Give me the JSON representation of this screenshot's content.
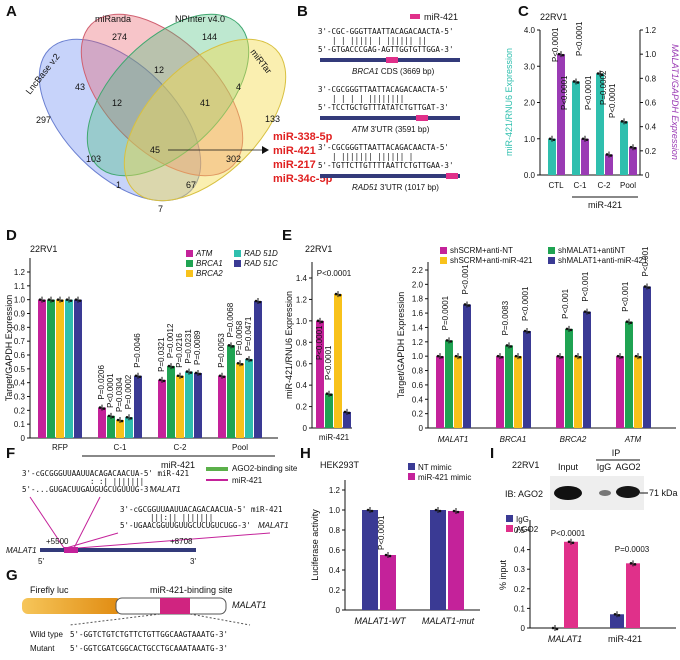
{
  "panel_labels": [
    "A",
    "B",
    "C",
    "D",
    "E",
    "F",
    "G",
    "H",
    "I"
  ],
  "colors": {
    "teal": "#2fbfae",
    "magenta": "#c4229a",
    "purple": "#9a3bb4",
    "yellow": "#f8c21b",
    "green": "#1fa352",
    "navy": "#3a3a94",
    "blue": "#2a4ec0",
    "pink": "#e0308a",
    "red": "#e02020",
    "dark": "#151515"
  },
  "panel_a": {
    "sets": [
      "LncBase v.2",
      "miRanda",
      "NPInter v4.0",
      "miRTar"
    ],
    "counts": [
      "297",
      "274",
      "144",
      "133",
      "43",
      "12",
      "4",
      "12",
      "41",
      "103",
      "45",
      "302",
      "1",
      "67",
      "7"
    ],
    "mirnas": [
      "miR-338-5p",
      "miR-421",
      "miR-217",
      "miR-34c-5p"
    ]
  },
  "panel_b": {
    "legend": "miR-421",
    "blocks": [
      {
        "top": "3'-CGC-GGGTTAATTACAGACAACTA-5'",
        "pairs": "| |   ||||| |    |||||| ||",
        "bottom": "5'-GTGACCCGAG-AGTTGGTGTTGGA-3'",
        "gene": "BRCA1",
        "caption": " CDS (3669 bp)"
      },
      {
        "top": "3'-CGCGGGTTAATTACAGACAACTA-5'",
        "pairs": "|   | |  |   ||||||||",
        "bottom": "5'-TCCTGCTGTTTATATCTGTTGAT-3'",
        "gene": "ATM",
        "caption": " 3'UTR (3591 bp)"
      },
      {
        "top": "3'-CGCGGGTTAATTACAGACAACTA-5'",
        "pairs": "|  |||||||  |||||| |",
        "bottom": "5'-TGTTCTTGTTTTAATTCTGTTGAA-3'",
        "gene": "RAD51",
        "caption": " 3'UTR (1017 bp)"
      }
    ]
  },
  "panel_c": {
    "cell": "22RV1",
    "ylabel_left": "miR-421/RNU6 Expression",
    "ylabel_right": "MALAT1/GAPDH Expression",
    "ticks_left": [
      "0.0",
      "1.0",
      "2.0",
      "3.0",
      "4.0"
    ],
    "ticks_right": [
      "0",
      "0.2",
      "0.4",
      "0.6",
      "0.8",
      "1.0",
      "1.2"
    ],
    "pvals": [
      "P<0.0001",
      "P<0.0001",
      "P<0.0001",
      "P<0.0001",
      "P=0.0002",
      "P<0.0001"
    ],
    "group_label": "miR-421"
  },
  "panel_d": {
    "cell": "22RV1",
    "legend": [
      "ATM",
      "BRCA1",
      "BRCA2",
      "RAD 51D",
      "RAD 51C"
    ],
    "ylabel": "Target/GAPDH Expression",
    "ticks": [
      "0",
      "0.1",
      "0.2",
      "0.3",
      "0.4",
      "0.5",
      "0.6",
      "0.7",
      "0.8",
      "0.9",
      "1.0",
      "1.1",
      "1.2"
    ],
    "pvals": [
      "P=0.0206",
      "P<0.0001",
      "P=0.0304",
      "P=0.0002",
      "P=0.0046",
      "P=0.0321",
      "P=0.0012",
      "P=0.0216",
      "P=0.0231",
      "P=0.0089",
      "P=0.0053",
      "P=0.0068",
      "P=0.0058",
      "P=0.0471"
    ],
    "group_label": "miR-421"
  },
  "panel_e": {
    "cell": "22RV1",
    "legend": [
      "shSCRM+anti-NT",
      "shMALAT1+antiNT",
      "shSCRM+anti-miR-421",
      "shMALAT1+anti-miR-421"
    ],
    "ylabel_left": "miR-421/RNU6 Expression",
    "ylabel_right": "Target/GAPDH Expression",
    "ticks_left": [
      "0",
      "0.2",
      "0.4",
      "0.6",
      "0.8",
      "1.0",
      "1.2",
      "1.4"
    ],
    "ticks_right": [
      "0",
      "0.2",
      "0.4",
      "0.6",
      "0.8",
      "1.0",
      "1.2",
      "1.4",
      "1.6",
      "1.8",
      "2.0",
      "2.2"
    ],
    "pvals_left": [
      "P<0.0001",
      "P<0.0001",
      "P<0.0001"
    ],
    "pvals_right": [
      "P=0.0001",
      "P<0.001",
      "P=0.0083",
      "P<0.0001",
      "P<0.001",
      "P<0.001",
      "P<0.001",
      "P<0.001"
    ]
  },
  "panel_f": {
    "legend": [
      "AGO2-binding site",
      "miR-421"
    ],
    "site1_top": "3'-cGCGGGUUAAUUACAGACAACUA-5' miR-421",
    "site1_pairs": ": :|  |||||||",
    "site1_bottom": "5'-...GUGACUUGAUGUGCUGUUUG-3'",
    "site1_gene": "MALAT1",
    "site2_top": "3'-cGCGGUUAAUUACAGACAACUA-5' miR-421",
    "site2_pairs": "|||:||  |||||||",
    "site2_bottom": "5'-UGAACGGUUGUUGCUCUGUCUGG-3'",
    "site2_gene": "MALAT1",
    "coord1": "+5500",
    "coord2": "+8708",
    "gene": "MALAT1",
    "five": "5'",
    "three": "3'"
  },
  "panel_g": {
    "luc": "Firefly luc",
    "site": "miR-421-binding site",
    "gene": "MALAT1",
    "wt_label": "Wild type",
    "wt_seq": "5'-GGTCTGTCTGTTCTGTTGGCAAGTAAATG-3'",
    "mut_label": "Mutant",
    "mut_seq": "5'-GGTCGATCGGCACTGCCTGCAAATAAATG-3'"
  },
  "panel_h": {
    "cell": "HEK293T",
    "legend": [
      "NT mimic",
      "miR-421 mimic"
    ],
    "ylabel": "Luciferase activity",
    "ticks": [
      "0",
      "0.2",
      "0.4",
      "0.6",
      "0.8",
      "1.0",
      "1.2"
    ],
    "categories": [
      "MALAT1-WT",
      "MALAT1-mut"
    ],
    "pval": "P<0.0001"
  },
  "panel_i": {
    "cell": "22RV1",
    "blot_labels": [
      "Input",
      "IgG",
      "AGO2",
      "IP"
    ],
    "ib": "IB: AGO2",
    "kda": "71 kDa",
    "legend": [
      "IgG",
      "AGO2"
    ],
    "ylabel": "% input",
    "ticks": [
      "0",
      "0.1",
      "0.2",
      "0.3",
      "0.4",
      "0.5"
    ],
    "categories": [
      "MALAT1",
      "miR-421"
    ],
    "pvals": [
      "P<0.0001",
      "P=0.0003"
    ]
  },
  "chart_data": [
    {
      "type": "bar",
      "panel": "C",
      "categories": [
        "CTL",
        "C-1",
        "C-2",
        "Pool"
      ],
      "ylim": [
        0,
        4
      ],
      "y2lim": [
        0,
        1.2
      ],
      "series": [
        {
          "name": "miR-421/RNU6",
          "axis": "left",
          "values": [
            1.0,
            2.58,
            2.8,
            1.48
          ]
        },
        {
          "name": "MALAT1/GAPDH",
          "axis": "right",
          "values": [
            1.0,
            0.3,
            0.17,
            0.23
          ]
        }
      ]
    },
    {
      "type": "bar",
      "panel": "D",
      "categories": [
        "RFP",
        "C-1",
        "C-2",
        "Pool"
      ],
      "ylim": [
        0,
        1.2
      ],
      "series": [
        {
          "name": "ATM",
          "values": [
            1.0,
            0.22,
            0.42,
            0.45
          ]
        },
        {
          "name": "BRCA1",
          "values": [
            1.0,
            0.16,
            0.52,
            0.67
          ]
        },
        {
          "name": "BRCA2",
          "values": [
            1.0,
            0.13,
            0.45,
            0.54
          ]
        },
        {
          "name": "RAD 51D",
          "values": [
            1.0,
            0.15,
            0.48,
            0.57
          ]
        },
        {
          "name": "RAD 51C",
          "values": [
            1.0,
            0.45,
            0.47,
            0.99
          ]
        }
      ]
    },
    {
      "type": "bar",
      "panel": "E-left",
      "categories": [
        "miR-421"
      ],
      "ylim": [
        0,
        1.4
      ],
      "series": [
        {
          "name": "shSCRM+anti-NT",
          "values": [
            1.0
          ]
        },
        {
          "name": "shSCRM+anti-miR-421",
          "values": [
            0.32
          ]
        },
        {
          "name": "shMALAT1+antiNT",
          "values": [
            1.25
          ]
        },
        {
          "name": "shMALAT1+anti-miR-421",
          "values": [
            0.15
          ]
        }
      ]
    },
    {
      "type": "bar",
      "panel": "E-right",
      "categories": [
        "MALAT1",
        "BRCA1",
        "BRCA2",
        "ATM"
      ],
      "ylim": [
        0,
        2.2
      ],
      "series": [
        {
          "name": "shSCRM+anti-NT",
          "values": [
            1.0,
            1.0,
            1.0,
            1.0
          ]
        },
        {
          "name": "shSCRM+anti-miR-421",
          "values": [
            1.22,
            1.15,
            1.38,
            1.48
          ]
        },
        {
          "name": "shMALAT1+antiNT",
          "values": [
            1.0,
            1.0,
            1.0,
            1.0
          ]
        },
        {
          "name": "shMALAT1+anti-miR-421",
          "values": [
            1.72,
            1.35,
            1.62,
            1.97
          ]
        }
      ]
    },
    {
      "type": "bar",
      "panel": "H",
      "categories": [
        "MALAT1-WT",
        "MALAT1-mut"
      ],
      "ylim": [
        0,
        1.2
      ],
      "series": [
        {
          "name": "NT mimic",
          "values": [
            1.0,
            1.0
          ]
        },
        {
          "name": "miR-421 mimic",
          "values": [
            0.55,
            0.99
          ]
        }
      ]
    },
    {
      "type": "bar",
      "panel": "I",
      "categories": [
        "MALAT1",
        "miR-421"
      ],
      "ylim": [
        0,
        0.5
      ],
      "series": [
        {
          "name": "IgG",
          "values": [
            0.0,
            0.07
          ]
        },
        {
          "name": "AGO2",
          "values": [
            0.44,
            0.33
          ]
        }
      ]
    }
  ]
}
